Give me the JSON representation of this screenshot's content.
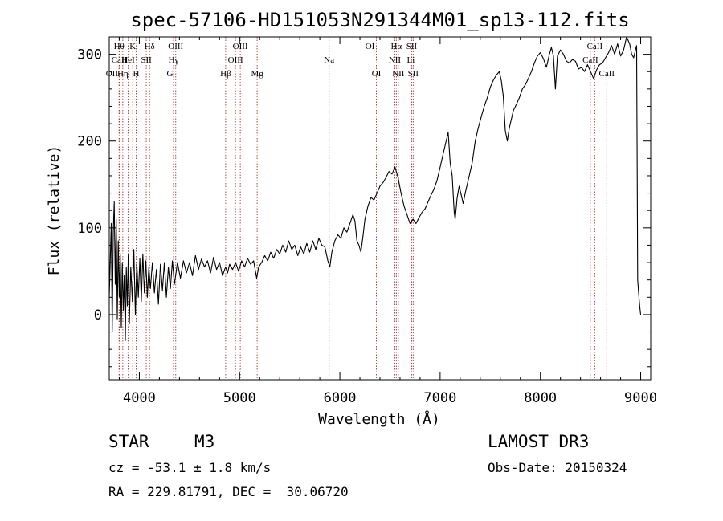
{
  "chart_data": {
    "type": "line",
    "title": "spec-57106-HD151053N291344M01_sp13-112.fits",
    "xlabel": "Wavelength (Å)",
    "ylabel": "Flux (relative)",
    "xlim": [
      3700,
      9100
    ],
    "ylim": [
      -75,
      320
    ],
    "xticks": [
      {
        "value": 4000,
        "label": "4000"
      },
      {
        "value": 5000,
        "label": "5000"
      },
      {
        "value": 6000,
        "label": "6000"
      },
      {
        "value": 7000,
        "label": "7000"
      },
      {
        "value": 8000,
        "label": "8000"
      },
      {
        "value": 9000,
        "label": "9000"
      }
    ],
    "yticks": [
      {
        "value": 0,
        "label": "0"
      },
      {
        "value": 100,
        "label": "100"
      },
      {
        "value": 200,
        "label": "200"
      },
      {
        "value": 300,
        "label": "300"
      }
    ],
    "series": [
      {
        "name": "spectrum",
        "color": "#000000",
        "points": [
          [
            3700,
            20
          ],
          [
            3710,
            60
          ],
          [
            3720,
            105
          ],
          [
            3730,
            -20
          ],
          [
            3740,
            95
          ],
          [
            3750,
            130
          ],
          [
            3760,
            35
          ],
          [
            3770,
            110
          ],
          [
            3780,
            -5
          ],
          [
            3790,
            85
          ],
          [
            3800,
            20
          ],
          [
            3810,
            70
          ],
          [
            3820,
            -15
          ],
          [
            3830,
            60
          ],
          [
            3840,
            5
          ],
          [
            3850,
            45
          ],
          [
            3860,
            -30
          ],
          [
            3870,
            55
          ],
          [
            3880,
            10
          ],
          [
            3890,
            70
          ],
          [
            3900,
            -10
          ],
          [
            3915,
            55
          ],
          [
            3930,
            15
          ],
          [
            3945,
            75
          ],
          [
            3960,
            0
          ],
          [
            3975,
            60
          ],
          [
            3990,
            20
          ],
          [
            4005,
            65
          ],
          [
            4020,
            15
          ],
          [
            4035,
            70
          ],
          [
            4050,
            25
          ],
          [
            4065,
            62
          ],
          [
            4080,
            20
          ],
          [
            4095,
            55
          ],
          [
            4110,
            30
          ],
          [
            4130,
            60
          ],
          [
            4150,
            25
          ],
          [
            4170,
            52
          ],
          [
            4190,
            12
          ],
          [
            4210,
            58
          ],
          [
            4230,
            28
          ],
          [
            4250,
            60
          ],
          [
            4270,
            20
          ],
          [
            4290,
            55
          ],
          [
            4310,
            30
          ],
          [
            4330,
            62
          ],
          [
            4350,
            35
          ],
          [
            4380,
            60
          ],
          [
            4410,
            42
          ],
          [
            4440,
            62
          ],
          [
            4470,
            48
          ],
          [
            4500,
            60
          ],
          [
            4530,
            45
          ],
          [
            4560,
            68
          ],
          [
            4590,
            52
          ],
          [
            4620,
            64
          ],
          [
            4650,
            55
          ],
          [
            4680,
            62
          ],
          [
            4710,
            48
          ],
          [
            4740,
            66
          ],
          [
            4770,
            52
          ],
          [
            4800,
            60
          ],
          [
            4830,
            45
          ],
          [
            4860,
            55
          ],
          [
            4880,
            48
          ],
          [
            4900,
            58
          ],
          [
            4930,
            52
          ],
          [
            4960,
            60
          ],
          [
            4990,
            50
          ],
          [
            5020,
            62
          ],
          [
            5050,
            55
          ],
          [
            5080,
            65
          ],
          [
            5110,
            58
          ],
          [
            5140,
            62
          ],
          [
            5170,
            42
          ],
          [
            5190,
            55
          ],
          [
            5220,
            60
          ],
          [
            5250,
            68
          ],
          [
            5280,
            62
          ],
          [
            5310,
            72
          ],
          [
            5340,
            65
          ],
          [
            5370,
            75
          ],
          [
            5400,
            70
          ],
          [
            5430,
            80
          ],
          [
            5460,
            72
          ],
          [
            5490,
            85
          ],
          [
            5520,
            75
          ],
          [
            5550,
            80
          ],
          [
            5580,
            68
          ],
          [
            5610,
            78
          ],
          [
            5640,
            70
          ],
          [
            5670,
            82
          ],
          [
            5700,
            72
          ],
          [
            5730,
            85
          ],
          [
            5760,
            75
          ],
          [
            5790,
            88
          ],
          [
            5820,
            80
          ],
          [
            5850,
            78
          ],
          [
            5880,
            62
          ],
          [
            5900,
            55
          ],
          [
            5920,
            72
          ],
          [
            5950,
            85
          ],
          [
            5980,
            92
          ],
          [
            6010,
            88
          ],
          [
            6040,
            100
          ],
          [
            6070,
            95
          ],
          [
            6100,
            105
          ],
          [
            6130,
            115
          ],
          [
            6150,
            108
          ],
          [
            6170,
            85
          ],
          [
            6190,
            80
          ],
          [
            6210,
            72
          ],
          [
            6230,
            90
          ],
          [
            6250,
            110
          ],
          [
            6280,
            125
          ],
          [
            6310,
            135
          ],
          [
            6340,
            132
          ],
          [
            6370,
            140
          ],
          [
            6400,
            148
          ],
          [
            6430,
            152
          ],
          [
            6460,
            158
          ],
          [
            6490,
            165
          ],
          [
            6520,
            162
          ],
          [
            6550,
            170
          ],
          [
            6580,
            158
          ],
          [
            6610,
            140
          ],
          [
            6640,
            125
          ],
          [
            6670,
            115
          ],
          [
            6700,
            105
          ],
          [
            6730,
            110
          ],
          [
            6760,
            105
          ],
          [
            6790,
            112
          ],
          [
            6820,
            118
          ],
          [
            6850,
            122
          ],
          [
            6880,
            130
          ],
          [
            6910,
            138
          ],
          [
            6940,
            145
          ],
          [
            6970,
            155
          ],
          [
            7000,
            170
          ],
          [
            7030,
            185
          ],
          [
            7060,
            200
          ],
          [
            7080,
            210
          ],
          [
            7100,
            175
          ],
          [
            7120,
            160
          ],
          [
            7140,
            118
          ],
          [
            7150,
            110
          ],
          [
            7170,
            135
          ],
          [
            7190,
            148
          ],
          [
            7210,
            138
          ],
          [
            7230,
            128
          ],
          [
            7250,
            140
          ],
          [
            7270,
            150
          ],
          [
            7290,
            160
          ],
          [
            7320,
            175
          ],
          [
            7350,
            200
          ],
          [
            7380,
            215
          ],
          [
            7410,
            228
          ],
          [
            7440,
            240
          ],
          [
            7470,
            250
          ],
          [
            7500,
            262
          ],
          [
            7530,
            270
          ],
          [
            7560,
            276
          ],
          [
            7590,
            280
          ],
          [
            7610,
            270
          ],
          [
            7630,
            252
          ],
          [
            7650,
            212
          ],
          [
            7670,
            200
          ],
          [
            7690,
            215
          ],
          [
            7710,
            225
          ],
          [
            7730,
            235
          ],
          [
            7760,
            242
          ],
          [
            7790,
            250
          ],
          [
            7820,
            260
          ],
          [
            7850,
            265
          ],
          [
            7880,
            272
          ],
          [
            7910,
            280
          ],
          [
            7940,
            290
          ],
          [
            7970,
            298
          ],
          [
            8000,
            302
          ],
          [
            8030,
            295
          ],
          [
            8060,
            285
          ],
          [
            8090,
            300
          ],
          [
            8110,
            308
          ],
          [
            8130,
            298
          ],
          [
            8150,
            260
          ],
          [
            8170,
            298
          ],
          [
            8200,
            305
          ],
          [
            8230,
            300
          ],
          [
            8260,
            292
          ],
          [
            8290,
            290
          ],
          [
            8320,
            294
          ],
          [
            8350,
            292
          ],
          [
            8380,
            283
          ],
          [
            8410,
            285
          ],
          [
            8440,
            280
          ],
          [
            8470,
            288
          ],
          [
            8500,
            280
          ],
          [
            8530,
            272
          ],
          [
            8560,
            282
          ],
          [
            8590,
            288
          ],
          [
            8620,
            290
          ],
          [
            8650,
            296
          ],
          [
            8680,
            302
          ],
          [
            8710,
            310
          ],
          [
            8740,
            300
          ],
          [
            8770,
            312
          ],
          [
            8800,
            298
          ],
          [
            8830,
            305
          ],
          [
            8860,
            320
          ],
          [
            8890,
            312
          ],
          [
            8910,
            300
          ],
          [
            8930,
            296
          ],
          [
            8950,
            306
          ],
          [
            8960,
            310
          ],
          [
            8970,
            40
          ],
          [
            8980,
            25
          ],
          [
            8990,
            10
          ],
          [
            9000,
            0
          ]
        ]
      }
    ],
    "lines": [
      {
        "label": "Hθ",
        "wl": 3798,
        "row": 0
      },
      {
        "label": "CaII",
        "wl": 3800,
        "row": 1
      },
      {
        "label": "OII",
        "wl": 3727,
        "row": 2
      },
      {
        "label": "Hη",
        "wl": 3835,
        "row": 2
      },
      {
        "label": "K",
        "wl": 3934,
        "row": 0
      },
      {
        "label": "HeI",
        "wl": 3889,
        "row": 1
      },
      {
        "label": "H",
        "wl": 3968,
        "row": 2
      },
      {
        "label": "Hδ",
        "wl": 4102,
        "row": 0
      },
      {
        "label": "SII",
        "wl": 4069,
        "row": 1
      },
      {
        "label": "OIII",
        "wl": 4363,
        "row": 0
      },
      {
        "label": "Hγ",
        "wl": 4341,
        "row": 1
      },
      {
        "label": "G",
        "wl": 4305,
        "row": 2
      },
      {
        "label": "OIII",
        "wl": 5007,
        "row": 0
      },
      {
        "label": "OIII",
        "wl": 4959,
        "row": 1
      },
      {
        "label": "Hβ",
        "wl": 4861,
        "row": 2
      },
      {
        "label": "Mg",
        "wl": 5175,
        "row": 2
      },
      {
        "label": "Na",
        "wl": 5893,
        "row": 1
      },
      {
        "label": "OI",
        "wl": 6300,
        "row": 0
      },
      {
        "label": "OI",
        "wl": 6364,
        "row": 2
      },
      {
        "label": "Hα",
        "wl": 6563,
        "row": 0
      },
      {
        "label": "NII",
        "wl": 6548,
        "row": 1
      },
      {
        "label": "NII",
        "wl": 6583,
        "row": 2
      },
      {
        "label": "SII",
        "wl": 6716,
        "row": 0
      },
      {
        "label": "Li",
        "wl": 6708,
        "row": 1
      },
      {
        "label": "SII",
        "wl": 6731,
        "row": 2
      },
      {
        "label": "CaII",
        "wl": 8542,
        "row": 0
      },
      {
        "label": "CaII",
        "wl": 8498,
        "row": 1
      },
      {
        "label": "CaII",
        "wl": 8662,
        "row": 2
      }
    ]
  },
  "info": {
    "object_class": "STAR",
    "subclass": "M3",
    "survey": "LAMOST DR3",
    "redshift": "cz = -53.1 ± 1.8 km/s",
    "obs_date": "Obs-Date: 20150324",
    "coords": "RA = 229.81791, DEC =  30.06720"
  }
}
